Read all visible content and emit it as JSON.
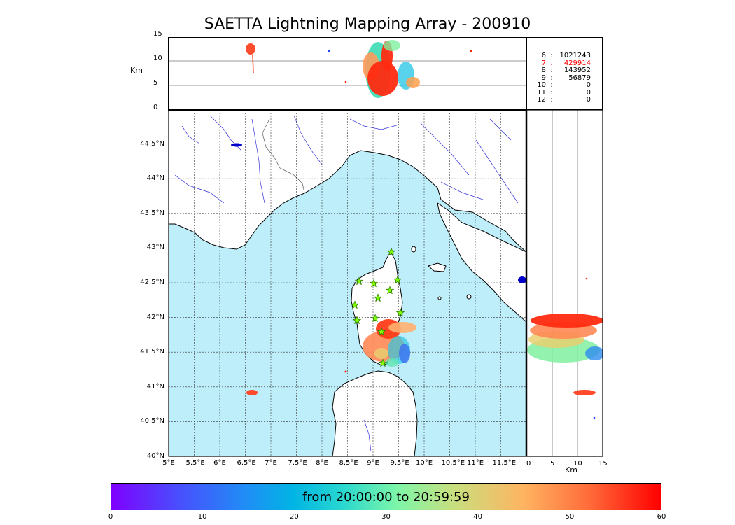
{
  "title": "SAETTA Lightning Mapping Array - 200910",
  "top_panel": {
    "axis_label": "Km",
    "y_ticks": [
      "15",
      "10",
      "5",
      "0"
    ]
  },
  "station_counts": [
    {
      "stations": "6",
      "sep": ":",
      "count": "1021243",
      "color": "#000000"
    },
    {
      "stations": "7",
      "sep": ":",
      "count": "429914",
      "color": "#ff0000"
    },
    {
      "stations": "8",
      "sep": ":",
      "count": "143952",
      "color": "#000000"
    },
    {
      "stations": "9",
      "sep": ":",
      "count": "56879",
      "color": "#000000"
    },
    {
      "stations": "10",
      "sep": ":",
      "count": "0",
      "color": "#000000"
    },
    {
      "stations": "11",
      "sep": ":",
      "count": "0",
      "color": "#000000"
    },
    {
      "stations": "12",
      "sep": ":",
      "count": "0",
      "color": "#000000"
    }
  ],
  "map_panel": {
    "lat_ticks": [
      "44.5°N",
      "44°N",
      "43.5°N",
      "43°N",
      "42.5°N",
      "42°N",
      "41.5°N",
      "41°N",
      "40.5°N",
      "40°N"
    ],
    "lon_ticks": [
      "5°E",
      "5.5°E",
      "6°E",
      "6.5°E",
      "7°E",
      "7.5°E",
      "8°E",
      "8.5°E",
      "9°E",
      "9.5°E",
      "10°E",
      "10.5°E",
      "11°E",
      "11.5°E"
    ],
    "sea_color": "#bdeefa",
    "land_color": "#ffffff",
    "river_color": "#3333dd"
  },
  "side_panel": {
    "axis_label": "Km",
    "x_ticks": [
      "0",
      "5",
      "10",
      "15"
    ]
  },
  "stations_marker": {
    "icon": "green-star-icon",
    "color": "#7fff00"
  },
  "colorbar": {
    "label": "from 20:00:00 to 20:59:59",
    "ticks": [
      "0",
      "10",
      "20",
      "30",
      "40",
      "50",
      "60"
    ],
    "range": [
      0,
      60
    ]
  }
}
